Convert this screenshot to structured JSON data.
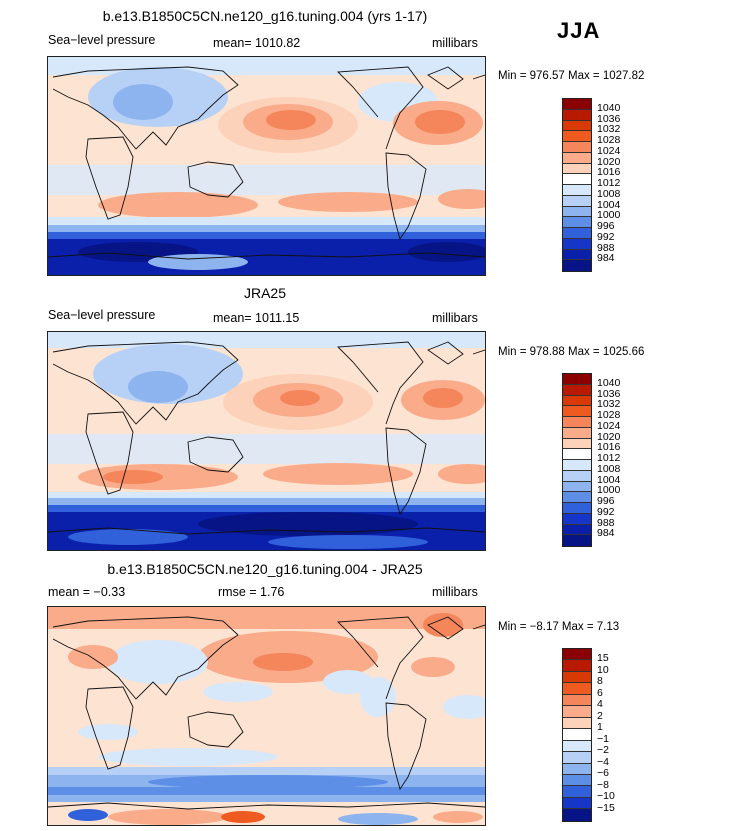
{
  "season": "JJA",
  "panels": [
    {
      "title": "b.e13.B1850C5CN.ne120_g16.tuning.004 (yrs 1-17)",
      "left_label": "Sea−level pressure",
      "center_label": "mean=  1010.82",
      "right_label": "millibars",
      "minmax": "Min =  976.57  Max =  1027.82",
      "levels": [
        "1040",
        "1036",
        "1032",
        "1028",
        "1024",
        "1020",
        "1016",
        "1012",
        "1008",
        "1004",
        "1000",
        "996",
        "992",
        "988",
        "984"
      ]
    },
    {
      "title": "JRA25",
      "left_label": "Sea−level pressure",
      "center_label": "mean=  1011.15",
      "right_label": "millibars",
      "minmax": "Min =  978.88  Max =  1025.66",
      "levels": [
        "1040",
        "1036",
        "1032",
        "1028",
        "1024",
        "1020",
        "1016",
        "1012",
        "1008",
        "1004",
        "1000",
        "996",
        "992",
        "988",
        "984"
      ]
    },
    {
      "title": "b.e13.B1850C5CN.ne120_g16.tuning.004 - JRA25",
      "left_label": "mean =   −0.33",
      "center_label": "rmse =     1.76",
      "right_label": "millibars",
      "minmax": "Min =   −8.17  Max =    7.13",
      "levels": [
        "15",
        "10",
        "8",
        "6",
        "4",
        "2",
        "1",
        "−1",
        "−2",
        "−4",
        "−6",
        "−8",
        "−10",
        "−15"
      ]
    }
  ],
  "colors": {
    "abs_scale": [
      "#8b0000",
      "#b81a00",
      "#d93a05",
      "#ef5a20",
      "#f5855a",
      "#f9ab8a",
      "#fdd2bb",
      "#ffffff",
      "#d8e8fb",
      "#b7d1f6",
      "#8db4ef",
      "#5d8fe6",
      "#3160db",
      "#1636c9",
      "#0a1faa",
      "#061486"
    ],
    "diff_scale": [
      "#8b0000",
      "#b81a00",
      "#d93a05",
      "#ef5a20",
      "#f5855a",
      "#f9ab8a",
      "#fdd2bb",
      "#ffffff",
      "#d8e8fb",
      "#b7d1f6",
      "#8db4ef",
      "#5d8fe6",
      "#3160db",
      "#1636c9",
      "#061486"
    ]
  }
}
